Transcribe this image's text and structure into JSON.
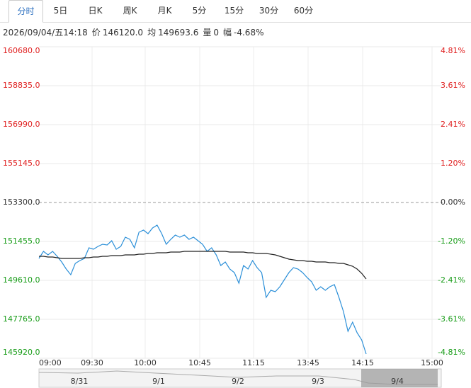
{
  "header": {
    "tabs": [
      "分时",
      "5日",
      "日K",
      "周K",
      "月K",
      "5分",
      "15分",
      "30分",
      "60分"
    ]
  },
  "info": {
    "datetime": "2026/09/04/五14:18",
    "price_label": "价",
    "price": "146120.0",
    "avg_label": "均",
    "avg": "149693.6",
    "volume_label": "量",
    "volume": "0",
    "range_label": "幅",
    "range": "-4.68%"
  },
  "chart_data": {
    "type": "line",
    "x_labels": [
      "09:00",
      "09:30",
      "10:00",
      "10:45",
      "11:15",
      "13:45",
      "14:15",
      "15:00"
    ],
    "ylim": [
      145920,
      160680
    ],
    "yticks": [
      {
        "value": 160680,
        "label": "160680.0"
      },
      {
        "value": 158835,
        "label": "158835.0"
      },
      {
        "value": 156990,
        "label": "156990.0"
      },
      {
        "value": 155145,
        "label": "155145.0"
      },
      {
        "value": 153300,
        "label": "153300.0"
      },
      {
        "value": 151455,
        "label": "151455.0"
      },
      {
        "value": 149610,
        "label": "149610.0"
      },
      {
        "value": 147765,
        "label": "147765.0"
      },
      {
        "value": 145920,
        "label": "145920.0"
      }
    ],
    "y2lim": [
      -4.81,
      4.81
    ],
    "y2ticks": [
      {
        "value": 4.81,
        "label": "4.81%"
      },
      {
        "value": 3.61,
        "label": "3.61%"
      },
      {
        "value": 2.41,
        "label": "2.41%"
      },
      {
        "value": 1.2,
        "label": "1.20%"
      },
      {
        "value": 0,
        "label": "0.00%"
      },
      {
        "value": -1.2,
        "label": "-1.20%"
      },
      {
        "value": -2.41,
        "label": "-2.41%"
      },
      {
        "value": -3.61,
        "label": "-3.61%"
      },
      {
        "value": -4.81,
        "label": "-4.81%"
      }
    ],
    "grid": true,
    "series": [
      {
        "color": "#2b8fd8",
        "values": [
          150650,
          150985,
          150818,
          150985,
          150751,
          150482,
          150147,
          149878,
          150415,
          150549,
          150650,
          151153,
          151086,
          151220,
          151321,
          151287,
          151489,
          151086,
          151220,
          151656,
          151556,
          151153,
          151891,
          151992,
          151824,
          152092,
          152227,
          151824,
          151321,
          151556,
          151757,
          151656,
          151757,
          151556,
          151656,
          151489,
          151321,
          150985,
          151153,
          150818,
          150314,
          150482,
          150147,
          149979,
          149476,
          150314,
          150147,
          150549,
          150214,
          149979,
          148805,
          149140,
          149073,
          149308,
          149644,
          149979,
          150214,
          150147,
          149979,
          149744,
          149543,
          149140,
          149308,
          149140,
          149308,
          149409,
          148805,
          148134,
          147195,
          147631,
          147128,
          146792,
          146120
        ]
      },
      {
        "color": "#222222",
        "values": [
          150751,
          150751,
          150717,
          150717,
          150684,
          150650,
          150650,
          150650,
          150650,
          150650,
          150684,
          150684,
          150717,
          150717,
          150751,
          150751,
          150784,
          150784,
          150784,
          150818,
          150818,
          150818,
          150852,
          150852,
          150885,
          150885,
          150919,
          150919,
          150919,
          150952,
          150952,
          150952,
          150985,
          150985,
          150985,
          150985,
          150985,
          150985,
          150985,
          150985,
          150985,
          150985,
          150952,
          150952,
          150952,
          150952,
          150919,
          150919,
          150885,
          150885,
          150885,
          150852,
          150818,
          150751,
          150684,
          150616,
          150582,
          150549,
          150549,
          150515,
          150515,
          150482,
          150482,
          150482,
          150448,
          150448,
          150415,
          150415,
          150348,
          150281,
          150147,
          149944,
          149677
        ]
      }
    ]
  },
  "navigator": {
    "dates": [
      "8/31",
      "9/1",
      "9/2",
      "9/3",
      "9/4"
    ]
  }
}
